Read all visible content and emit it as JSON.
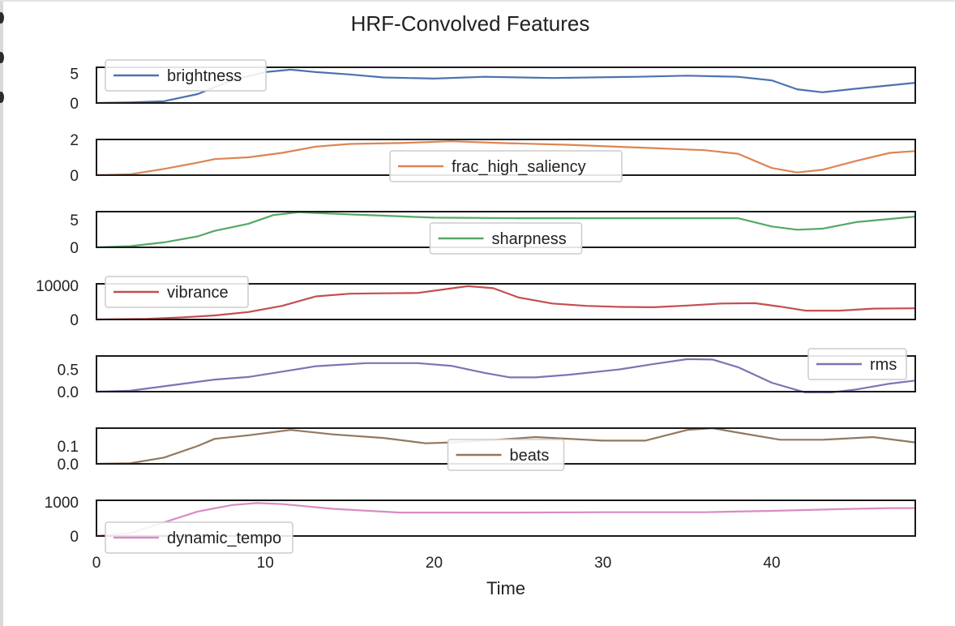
{
  "chart_data": {
    "type": "line",
    "title": "HRF-Convolved Features",
    "xlabel": "Time",
    "xlim": [
      0,
      48.5
    ],
    "xticks": [
      0,
      10,
      20,
      30,
      40
    ],
    "panels": [
      {
        "name": "brightness",
        "color": "#4c72b0",
        "ylim": [
          0,
          6
        ],
        "yticks": [
          0,
          5
        ],
        "legend": "upper-left",
        "points": [
          [
            0,
            0
          ],
          [
            2,
            0.1
          ],
          [
            4,
            0.3
          ],
          [
            6,
            1.5
          ],
          [
            8,
            3.8
          ],
          [
            10,
            5.2
          ],
          [
            11.5,
            5.6
          ],
          [
            13,
            5.2
          ],
          [
            15,
            4.8
          ],
          [
            17,
            4.3
          ],
          [
            20,
            4.1
          ],
          [
            23,
            4.4
          ],
          [
            27,
            4.2
          ],
          [
            32,
            4.4
          ],
          [
            35,
            4.6
          ],
          [
            38,
            4.4
          ],
          [
            40,
            3.8
          ],
          [
            41.5,
            2.3
          ],
          [
            43,
            1.8
          ],
          [
            45,
            2.4
          ],
          [
            48.5,
            3.4
          ]
        ]
      },
      {
        "name": "frac_high_saliency",
        "color": "#dd8452",
        "ylim": [
          0,
          2
        ],
        "yticks": [
          0,
          2
        ],
        "legend": "lower-center",
        "points": [
          [
            0,
            0
          ],
          [
            2,
            0.05
          ],
          [
            4,
            0.35
          ],
          [
            6,
            0.7
          ],
          [
            7,
            0.9
          ],
          [
            9,
            1.0
          ],
          [
            11,
            1.25
          ],
          [
            13,
            1.6
          ],
          [
            15,
            1.75
          ],
          [
            18,
            1.8
          ],
          [
            21,
            1.9
          ],
          [
            24,
            1.8
          ],
          [
            28,
            1.7
          ],
          [
            32,
            1.55
          ],
          [
            36,
            1.4
          ],
          [
            38,
            1.2
          ],
          [
            40,
            0.4
          ],
          [
            41.5,
            0.15
          ],
          [
            43,
            0.3
          ],
          [
            45,
            0.8
          ],
          [
            47,
            1.25
          ],
          [
            48.5,
            1.35
          ]
        ]
      },
      {
        "name": "sharpness",
        "color": "#55a868",
        "ylim": [
          0,
          6.5
        ],
        "yticks": [
          0,
          5
        ],
        "legend": "lower-center",
        "points": [
          [
            0,
            0
          ],
          [
            2,
            0.2
          ],
          [
            4,
            0.9
          ],
          [
            6,
            2.0
          ],
          [
            7,
            3.0
          ],
          [
            9,
            4.3
          ],
          [
            10.5,
            5.9
          ],
          [
            12,
            6.4
          ],
          [
            15,
            6.0
          ],
          [
            20,
            5.4
          ],
          [
            25,
            5.3
          ],
          [
            30,
            5.3
          ],
          [
            34,
            5.3
          ],
          [
            38,
            5.3
          ],
          [
            40,
            3.8
          ],
          [
            41.5,
            3.2
          ],
          [
            43,
            3.4
          ],
          [
            45,
            4.6
          ],
          [
            48.5,
            5.6
          ]
        ]
      },
      {
        "name": "vibrance",
        "color": "#c44e52",
        "ylim": [
          0,
          10500
        ],
        "yticks": [
          0,
          10000
        ],
        "legend": "upper-left",
        "points": [
          [
            0,
            0
          ],
          [
            3,
            200
          ],
          [
            5,
            600
          ],
          [
            7,
            1200
          ],
          [
            9,
            2200
          ],
          [
            11,
            4000
          ],
          [
            13,
            6800
          ],
          [
            15,
            7600
          ],
          [
            17,
            7700
          ],
          [
            19,
            7800
          ],
          [
            20.5,
            8800
          ],
          [
            22,
            9800
          ],
          [
            23.5,
            9200
          ],
          [
            25,
            6500
          ],
          [
            27,
            4700
          ],
          [
            29,
            4000
          ],
          [
            31,
            3700
          ],
          [
            33,
            3600
          ],
          [
            35,
            4100
          ],
          [
            37,
            4700
          ],
          [
            39,
            4800
          ],
          [
            40.5,
            3800
          ],
          [
            42,
            2600
          ],
          [
            44,
            2600
          ],
          [
            46,
            3200
          ],
          [
            48.5,
            3300
          ]
        ]
      },
      {
        "name": "rms",
        "color": "#8172b3",
        "ylim": [
          0,
          0.8
        ],
        "yticks": [
          0.0,
          0.5
        ],
        "yticklabels": [
          "0.0",
          "0.5"
        ],
        "legend": "upper-right",
        "points": [
          [
            0,
            0
          ],
          [
            2,
            0.02
          ],
          [
            4,
            0.12
          ],
          [
            7,
            0.27
          ],
          [
            9,
            0.33
          ],
          [
            11,
            0.45
          ],
          [
            13,
            0.57
          ],
          [
            16,
            0.64
          ],
          [
            19,
            0.64
          ],
          [
            21,
            0.58
          ],
          [
            23,
            0.42
          ],
          [
            24.5,
            0.32
          ],
          [
            26,
            0.32
          ],
          [
            28,
            0.38
          ],
          [
            31,
            0.5
          ],
          [
            33,
            0.62
          ],
          [
            35,
            0.73
          ],
          [
            36.5,
            0.72
          ],
          [
            38,
            0.55
          ],
          [
            40,
            0.2
          ],
          [
            42,
            -0.02
          ],
          [
            43,
            -0.04
          ],
          [
            45,
            0.05
          ],
          [
            47,
            0.18
          ],
          [
            48.5,
            0.25
          ]
        ]
      },
      {
        "name": "beats",
        "color": "#937860",
        "ylim": [
          0,
          0.2
        ],
        "yticks": [
          0.0,
          0.1
        ],
        "yticklabels": [
          "0.0",
          "0.1"
        ],
        "legend": "lower-center",
        "points": [
          [
            0,
            0
          ],
          [
            2,
            0.003
          ],
          [
            4,
            0.035
          ],
          [
            6,
            0.1
          ],
          [
            7,
            0.14
          ],
          [
            9,
            0.16
          ],
          [
            11.5,
            0.19
          ],
          [
            14,
            0.165
          ],
          [
            17,
            0.145
          ],
          [
            19.5,
            0.115
          ],
          [
            21,
            0.12
          ],
          [
            23,
            0.13
          ],
          [
            26,
            0.15
          ],
          [
            30,
            0.13
          ],
          [
            32.5,
            0.13
          ],
          [
            35,
            0.19
          ],
          [
            36.5,
            0.2
          ],
          [
            38,
            0.175
          ],
          [
            40.5,
            0.135
          ],
          [
            43,
            0.135
          ],
          [
            46,
            0.15
          ],
          [
            48.5,
            0.12
          ]
        ]
      },
      {
        "name": "dynamic_tempo",
        "color": "#da8bc3",
        "ylim": [
          0,
          1050
        ],
        "yticks": [
          0,
          1000
        ],
        "legend": "lower-left",
        "points": [
          [
            0,
            0
          ],
          [
            2,
            80
          ],
          [
            4,
            400
          ],
          [
            6,
            720
          ],
          [
            8,
            910
          ],
          [
            9.5,
            970
          ],
          [
            11,
            940
          ],
          [
            14,
            800
          ],
          [
            18,
            690
          ],
          [
            25,
            690
          ],
          [
            30,
            700
          ],
          [
            36,
            700
          ],
          [
            40,
            740
          ],
          [
            44,
            790
          ],
          [
            47,
            820
          ],
          [
            48.5,
            820
          ]
        ]
      }
    ]
  }
}
